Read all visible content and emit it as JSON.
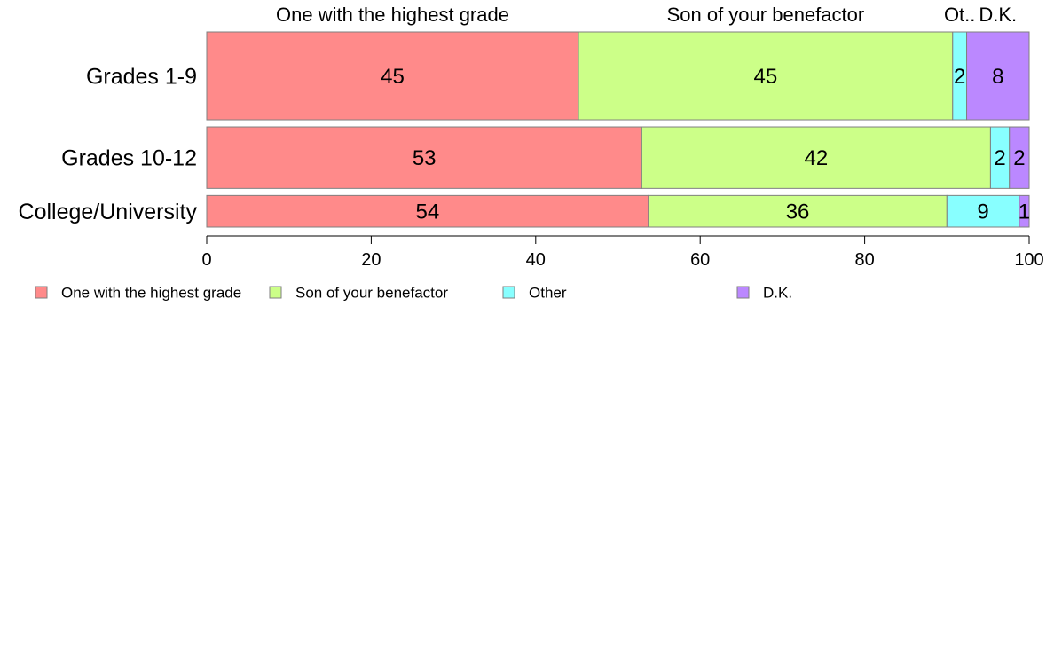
{
  "chart_data": {
    "type": "bar",
    "orientation": "horizontal",
    "stacked": true,
    "categories": [
      "Grades 1-9",
      "Grades 10-12",
      "College/University"
    ],
    "series": [
      {
        "name": "One with the highest grade",
        "top_label": "One with the highest grade",
        "color": "#FF8A8A",
        "values": [
          45.2,
          52.9,
          53.7
        ]
      },
      {
        "name": "Son of your benefactor",
        "top_label": "Son of your benefactor",
        "color": "#CCFF88",
        "values": [
          45.5,
          42.4,
          36.3
        ]
      },
      {
        "name": "Other",
        "top_label": "Ot..",
        "color": "#88FFFF",
        "values": [
          1.7,
          2.3,
          8.8
        ]
      },
      {
        "name": "D.K.",
        "top_label": "D.K.",
        "color": "#BB88FF",
        "values": [
          7.6,
          2.4,
          1.2
        ]
      }
    ],
    "data_labels": [
      [
        "45",
        "53",
        "54"
      ],
      [
        "45",
        "42",
        "36"
      ],
      [
        "2",
        "2",
        "9"
      ],
      [
        "8",
        "2",
        "1"
      ]
    ],
    "row_weights": [
      1.0,
      0.7,
      0.36
    ],
    "xlim": [
      0,
      100
    ],
    "xticks": [
      0,
      20,
      40,
      60,
      80,
      100
    ],
    "xtick_labels": [
      "0",
      "20",
      "40",
      "60",
      "80",
      "100"
    ],
    "xlabel": "",
    "ylabel": "",
    "grid": false,
    "legend_position": "bottom"
  }
}
